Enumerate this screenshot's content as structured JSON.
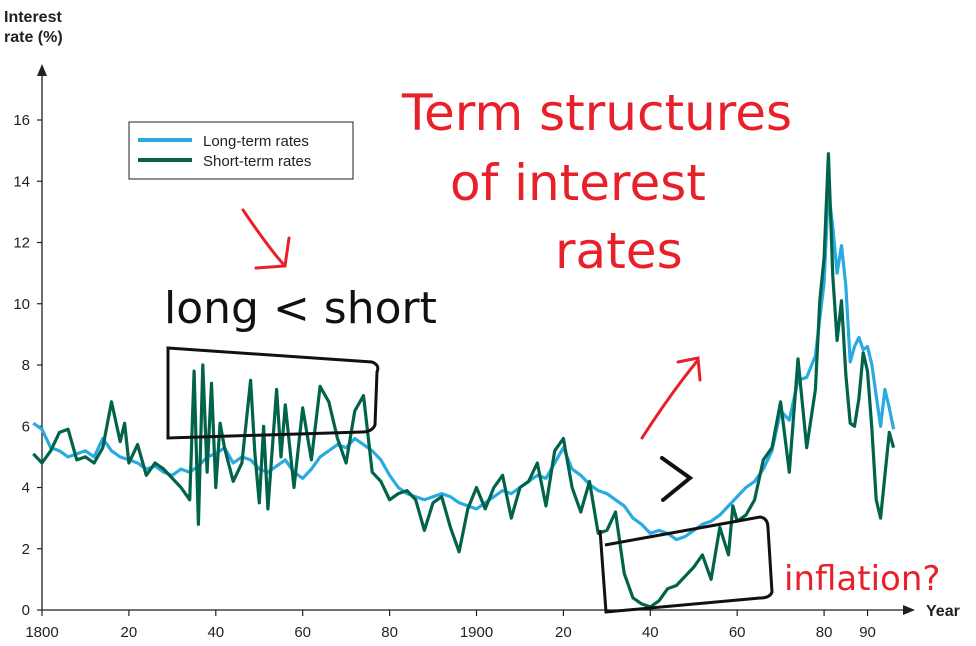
{
  "chart_data": {
    "type": "line",
    "ylabel": "Interest\nrate (%)",
    "xlabel": "Year",
    "xlim": [
      1800,
      1998
    ],
    "ylim": [
      0,
      16
    ],
    "x_ticks": [
      {
        "value": 1800,
        "label": "1800"
      },
      {
        "value": 1820,
        "label": "20"
      },
      {
        "value": 1840,
        "label": "40"
      },
      {
        "value": 1860,
        "label": "60"
      },
      {
        "value": 1880,
        "label": "80"
      },
      {
        "value": 1900,
        "label": "1900"
      },
      {
        "value": 1920,
        "label": "20"
      },
      {
        "value": 1940,
        "label": "40"
      },
      {
        "value": 1960,
        "label": "60"
      },
      {
        "value": 1980,
        "label": "80"
      },
      {
        "value": 1990,
        "label": "90"
      }
    ],
    "y_ticks": [
      0,
      2,
      4,
      6,
      8,
      10,
      12,
      14,
      16
    ],
    "legend": {
      "placement": "top-left"
    },
    "series": [
      {
        "name": "Long-term rates",
        "color": "#29abe2",
        "points": [
          [
            1798,
            6.1
          ],
          [
            1800,
            5.9
          ],
          [
            1802,
            5.3
          ],
          [
            1804,
            5.2
          ],
          [
            1806,
            5.0
          ],
          [
            1808,
            5.1
          ],
          [
            1810,
            5.2
          ],
          [
            1812,
            5.0
          ],
          [
            1814,
            5.6
          ],
          [
            1816,
            5.2
          ],
          [
            1818,
            5.0
          ],
          [
            1820,
            4.9
          ],
          [
            1822,
            4.8
          ],
          [
            1824,
            4.6
          ],
          [
            1826,
            4.7
          ],
          [
            1828,
            4.5
          ],
          [
            1830,
            4.4
          ],
          [
            1832,
            4.6
          ],
          [
            1834,
            4.5
          ],
          [
            1836,
            4.7
          ],
          [
            1838,
            5.0
          ],
          [
            1840,
            5.1
          ],
          [
            1842,
            5.3
          ],
          [
            1844,
            4.8
          ],
          [
            1846,
            5.0
          ],
          [
            1848,
            4.9
          ],
          [
            1850,
            4.6
          ],
          [
            1852,
            4.5
          ],
          [
            1854,
            4.7
          ],
          [
            1856,
            4.9
          ],
          [
            1858,
            4.5
          ],
          [
            1860,
            4.3
          ],
          [
            1862,
            4.6
          ],
          [
            1864,
            5.0
          ],
          [
            1866,
            5.2
          ],
          [
            1868,
            5.4
          ],
          [
            1870,
            5.3
          ],
          [
            1872,
            5.6
          ],
          [
            1874,
            5.4
          ],
          [
            1876,
            5.2
          ],
          [
            1878,
            4.9
          ],
          [
            1880,
            4.4
          ],
          [
            1882,
            4.0
          ],
          [
            1884,
            3.8
          ],
          [
            1886,
            3.7
          ],
          [
            1888,
            3.6
          ],
          [
            1890,
            3.7
          ],
          [
            1892,
            3.8
          ],
          [
            1894,
            3.7
          ],
          [
            1896,
            3.5
          ],
          [
            1898,
            3.4
          ],
          [
            1900,
            3.3
          ],
          [
            1902,
            3.5
          ],
          [
            1904,
            3.7
          ],
          [
            1906,
            3.9
          ],
          [
            1908,
            3.8
          ],
          [
            1910,
            4.0
          ],
          [
            1912,
            4.2
          ],
          [
            1914,
            4.4
          ],
          [
            1916,
            4.3
          ],
          [
            1918,
            4.8
          ],
          [
            1920,
            5.3
          ],
          [
            1922,
            4.6
          ],
          [
            1924,
            4.4
          ],
          [
            1926,
            4.1
          ],
          [
            1928,
            3.9
          ],
          [
            1930,
            3.8
          ],
          [
            1932,
            3.6
          ],
          [
            1934,
            3.4
          ],
          [
            1936,
            3.0
          ],
          [
            1938,
            2.8
          ],
          [
            1940,
            2.5
          ],
          [
            1942,
            2.6
          ],
          [
            1944,
            2.5
          ],
          [
            1946,
            2.3
          ],
          [
            1948,
            2.4
          ],
          [
            1950,
            2.6
          ],
          [
            1952,
            2.8
          ],
          [
            1954,
            2.9
          ],
          [
            1956,
            3.1
          ],
          [
            1958,
            3.4
          ],
          [
            1960,
            3.7
          ],
          [
            1962,
            4.0
          ],
          [
            1964,
            4.2
          ],
          [
            1966,
            4.6
          ],
          [
            1968,
            5.2
          ],
          [
            1970,
            6.5
          ],
          [
            1972,
            6.2
          ],
          [
            1974,
            7.5
          ],
          [
            1976,
            7.6
          ],
          [
            1978,
            8.3
          ],
          [
            1980,
            10.7
          ],
          [
            1981,
            13.7
          ],
          [
            1982,
            12.5
          ],
          [
            1983,
            11.0
          ],
          [
            1984,
            11.9
          ],
          [
            1985,
            10.6
          ],
          [
            1986,
            8.1
          ],
          [
            1987,
            8.6
          ],
          [
            1988,
            8.9
          ],
          [
            1989,
            8.5
          ],
          [
            1990,
            8.6
          ],
          [
            1991,
            8.0
          ],
          [
            1992,
            7.0
          ],
          [
            1993,
            6.0
          ],
          [
            1994,
            7.2
          ],
          [
            1995,
            6.6
          ],
          [
            1996,
            5.9
          ]
        ]
      },
      {
        "name": "Short-term rates",
        "color": "#00634a",
        "points": [
          [
            1798,
            5.1
          ],
          [
            1800,
            4.8
          ],
          [
            1802,
            5.2
          ],
          [
            1804,
            5.8
          ],
          [
            1806,
            5.9
          ],
          [
            1808,
            4.9
          ],
          [
            1810,
            5.0
          ],
          [
            1812,
            4.8
          ],
          [
            1814,
            5.3
          ],
          [
            1816,
            6.8
          ],
          [
            1818,
            5.5
          ],
          [
            1819,
            6.1
          ],
          [
            1820,
            4.8
          ],
          [
            1822,
            5.4
          ],
          [
            1824,
            4.4
          ],
          [
            1826,
            4.8
          ],
          [
            1828,
            4.6
          ],
          [
            1830,
            4.3
          ],
          [
            1832,
            4.0
          ],
          [
            1834,
            3.6
          ],
          [
            1835,
            7.8
          ],
          [
            1836,
            2.8
          ],
          [
            1837,
            8.0
          ],
          [
            1838,
            4.5
          ],
          [
            1839,
            7.4
          ],
          [
            1840,
            4.0
          ],
          [
            1841,
            6.1
          ],
          [
            1842,
            5.3
          ],
          [
            1844,
            4.2
          ],
          [
            1846,
            4.8
          ],
          [
            1848,
            7.5
          ],
          [
            1849,
            5.1
          ],
          [
            1850,
            3.5
          ],
          [
            1851,
            6.0
          ],
          [
            1852,
            3.3
          ],
          [
            1854,
            7.2
          ],
          [
            1855,
            5.0
          ],
          [
            1856,
            6.7
          ],
          [
            1858,
            4.0
          ],
          [
            1860,
            6.6
          ],
          [
            1862,
            4.9
          ],
          [
            1864,
            7.3
          ],
          [
            1866,
            6.8
          ],
          [
            1868,
            5.6
          ],
          [
            1870,
            4.8
          ],
          [
            1872,
            6.5
          ],
          [
            1874,
            7.0
          ],
          [
            1876,
            4.5
          ],
          [
            1878,
            4.2
          ],
          [
            1880,
            3.6
          ],
          [
            1882,
            3.8
          ],
          [
            1884,
            3.9
          ],
          [
            1886,
            3.6
          ],
          [
            1888,
            2.6
          ],
          [
            1890,
            3.5
          ],
          [
            1892,
            3.7
          ],
          [
            1894,
            2.7
          ],
          [
            1896,
            1.9
          ],
          [
            1898,
            3.3
          ],
          [
            1900,
            4.0
          ],
          [
            1902,
            3.3
          ],
          [
            1904,
            4.0
          ],
          [
            1906,
            4.4
          ],
          [
            1908,
            3.0
          ],
          [
            1910,
            4.0
          ],
          [
            1912,
            4.2
          ],
          [
            1914,
            4.8
          ],
          [
            1916,
            3.4
          ],
          [
            1918,
            5.2
          ],
          [
            1920,
            5.6
          ],
          [
            1922,
            4.0
          ],
          [
            1924,
            3.2
          ],
          [
            1926,
            4.2
          ],
          [
            1928,
            2.5
          ],
          [
            1930,
            2.6
          ],
          [
            1932,
            3.2
          ],
          [
            1934,
            1.2
          ],
          [
            1936,
            0.4
          ],
          [
            1938,
            0.2
          ],
          [
            1940,
            0.1
          ],
          [
            1942,
            0.3
          ],
          [
            1944,
            0.7
          ],
          [
            1946,
            0.8
          ],
          [
            1948,
            1.1
          ],
          [
            1950,
            1.4
          ],
          [
            1952,
            1.8
          ],
          [
            1954,
            1.0
          ],
          [
            1956,
            2.7
          ],
          [
            1958,
            1.8
          ],
          [
            1959,
            3.4
          ],
          [
            1960,
            2.9
          ],
          [
            1962,
            3.1
          ],
          [
            1964,
            3.6
          ],
          [
            1966,
            4.9
          ],
          [
            1968,
            5.3
          ],
          [
            1970,
            6.8
          ],
          [
            1972,
            4.5
          ],
          [
            1974,
            8.2
          ],
          [
            1976,
            5.3
          ],
          [
            1978,
            7.2
          ],
          [
            1979,
            10.1
          ],
          [
            1980,
            11.5
          ],
          [
            1981,
            14.9
          ],
          [
            1982,
            10.9
          ],
          [
            1983,
            8.8
          ],
          [
            1984,
            10.1
          ],
          [
            1985,
            7.7
          ],
          [
            1986,
            6.1
          ],
          [
            1987,
            6.0
          ],
          [
            1988,
            6.9
          ],
          [
            1989,
            8.4
          ],
          [
            1990,
            7.8
          ],
          [
            1991,
            5.9
          ],
          [
            1992,
            3.6
          ],
          [
            1993,
            3.0
          ],
          [
            1994,
            4.4
          ],
          [
            1995,
            5.8
          ],
          [
            1996,
            5.3
          ]
        ]
      }
    ]
  },
  "annotations": {
    "title_note": [
      "Term structures",
      "of interest",
      "rates"
    ],
    "long_short": "long < short",
    "greater": ">",
    "inflation": "inflation?"
  }
}
